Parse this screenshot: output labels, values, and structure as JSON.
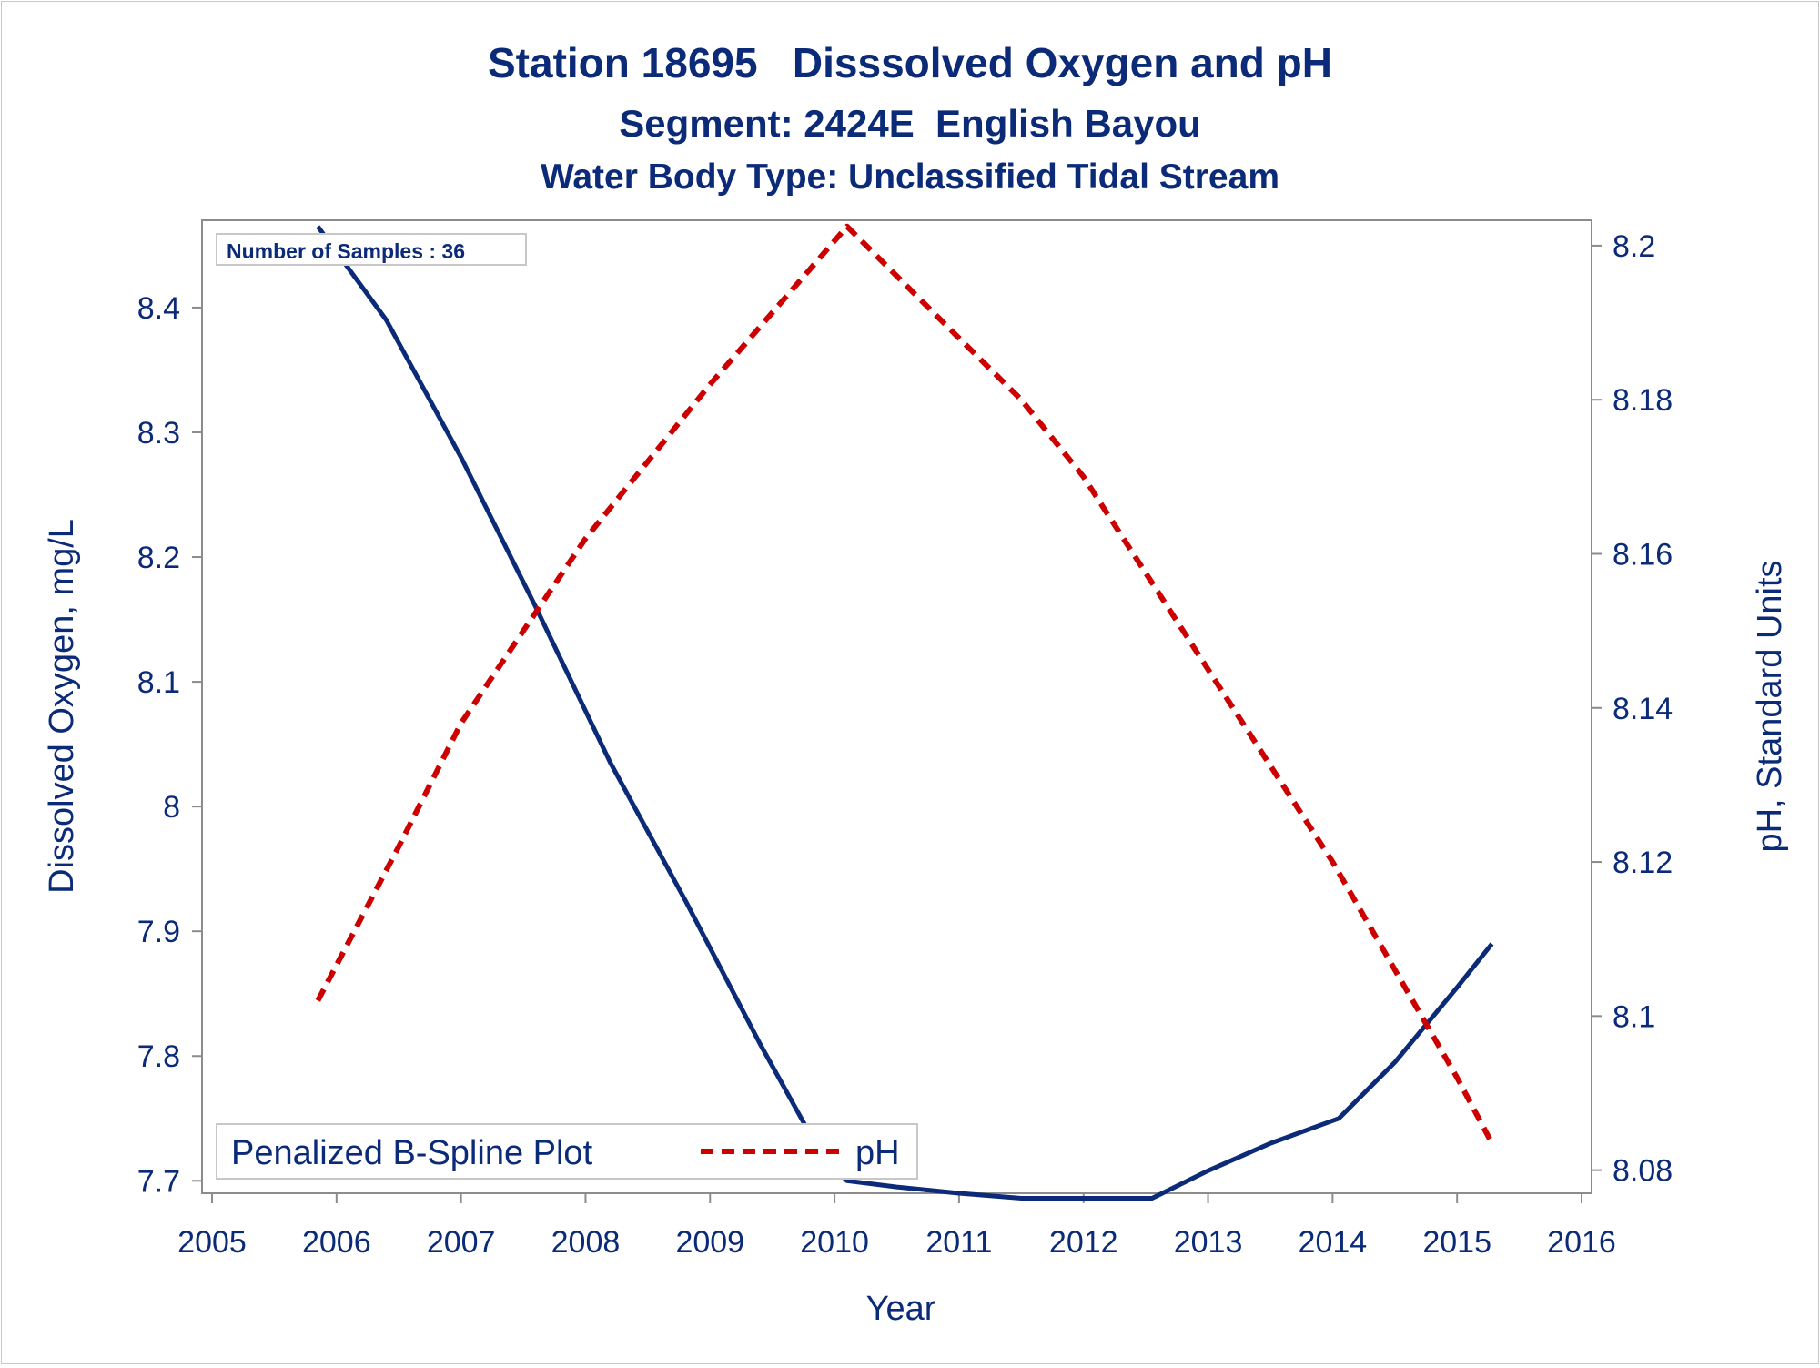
{
  "chart_data": {
    "type": "line",
    "title": "Station 18695   Disssolved Oxygen and pH",
    "subtitle": "Segment: 2424E  English Bayou",
    "subtitle2": "Water Body Type: Unclassified Tidal Stream",
    "xlabel": "Year",
    "ylabel": "Dissolved Oxygen, mg/L",
    "y2label": "pH, Standard Units",
    "xlim": [
      2005,
      2016
    ],
    "ylim": [
      7.69,
      8.47
    ],
    "y2lim": [
      8.077,
      8.2033
    ],
    "xticks": [
      "2005",
      "2006",
      "2007",
      "2008",
      "2009",
      "2010",
      "2011",
      "2012",
      "2013",
      "2014",
      "2015",
      "2016"
    ],
    "yticks": [
      "7.7",
      "7.8",
      "7.9",
      "8",
      "8.1",
      "8.2",
      "8.3",
      "8.4"
    ],
    "y2ticks": [
      "8.08",
      "8.1",
      "8.12",
      "8.14",
      "8.16",
      "8.18",
      "8.2"
    ],
    "inset_label": "Number of Samples : 36",
    "legend": {
      "position": "bottom-left",
      "entries": [
        "Penalized B-Spline Plot",
        "pH"
      ]
    },
    "grid": false,
    "series": [
      {
        "axis": "left",
        "color": "#0b2a78",
        "style": "solid",
        "x": [
          2005.85,
          2006.4,
          2007.0,
          2007.6,
          2008.2,
          2008.8,
          2009.4,
          2009.9,
          2010.1,
          2010.5,
          2011.0,
          2011.5,
          2012.0,
          2012.55,
          2013.0,
          2013.5,
          2014.05,
          2014.5,
          2015.0,
          2015.28
        ],
        "y": [
          8.465,
          8.39,
          8.28,
          8.16,
          8.035,
          7.925,
          7.81,
          7.72,
          7.7,
          7.695,
          7.69,
          7.686,
          7.686,
          7.686,
          7.708,
          7.73,
          7.75,
          7.795,
          7.855,
          7.89
        ]
      },
      {
        "name": "pH",
        "axis": "right",
        "color": "#cc0000",
        "style": "dashed",
        "x": [
          2005.85,
          2006.5,
          2007.0,
          2008.0,
          2009.0,
          2010.1,
          2011.0,
          2011.5,
          2012.0,
          2013.0,
          2014.0,
          2014.5,
          2015.0,
          2015.28
        ],
        "y": [
          8.102,
          8.122,
          8.138,
          8.162,
          8.182,
          8.2025,
          8.188,
          8.18,
          8.17,
          8.145,
          8.12,
          8.106,
          8.092,
          8.0835
        ]
      }
    ]
  }
}
